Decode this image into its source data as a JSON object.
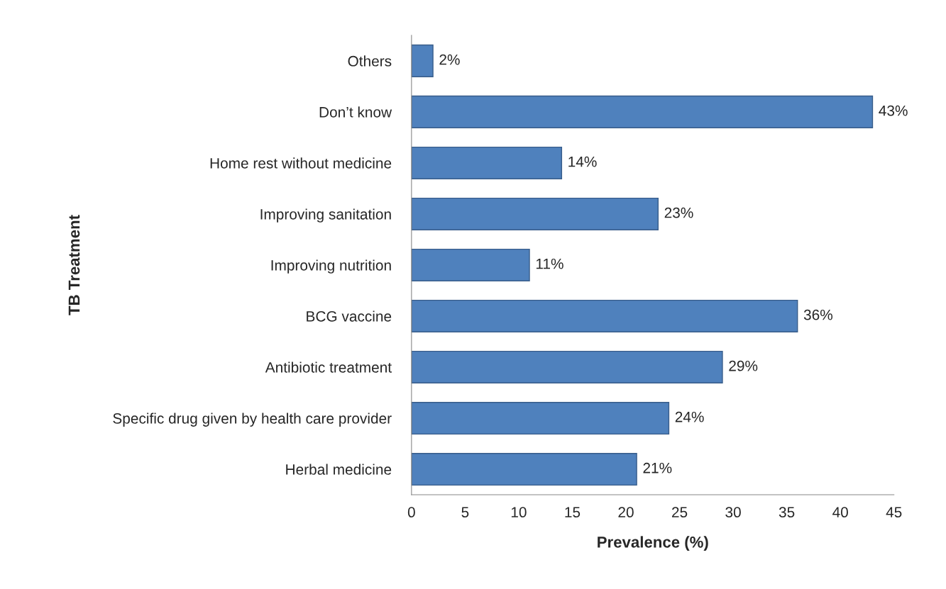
{
  "chart_data": {
    "type": "bar",
    "orientation": "horizontal",
    "xlabel": "Prevalence (%)",
    "ylabel": "TB Treatment",
    "categories": [
      "Others",
      "Don’t know",
      "Home rest without medicine",
      "Improving sanitation",
      "Improving nutrition",
      "BCG vaccine",
      "Antibiotic treatment",
      "Specific drug given by health care provider",
      "Herbal medicine"
    ],
    "values": [
      2,
      43,
      14,
      23,
      11,
      36,
      29,
      24,
      21
    ],
    "value_labels": [
      "2%",
      "43%",
      "14%",
      "23%",
      "11%",
      "36%",
      "29%",
      "24%",
      "21%"
    ],
    "color": "#4f81bd",
    "xlim": [
      0,
      45
    ],
    "xticks": [
      0,
      5,
      10,
      15,
      20,
      25,
      30,
      35,
      40,
      45
    ],
    "grid": false,
    "legend": false
  }
}
